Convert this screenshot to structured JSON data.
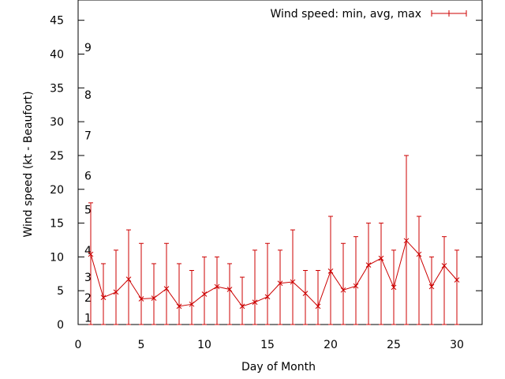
{
  "chart_data": {
    "type": "line",
    "title": "",
    "xlabel": "Day of Month",
    "ylabel": "Wind speed (kt - Beaufort)",
    "xlim": [
      0,
      32
    ],
    "ylim": [
      0,
      48
    ],
    "x_ticks": [
      0,
      5,
      10,
      15,
      20,
      25,
      30
    ],
    "y_ticks": [
      0,
      5,
      10,
      15,
      20,
      25,
      30,
      35,
      40,
      45
    ],
    "beaufort_labels": [
      {
        "label": "1",
        "value": 1
      },
      {
        "label": "2",
        "value": 4
      },
      {
        "label": "3",
        "value": 7
      },
      {
        "label": "4",
        "value": 11
      },
      {
        "label": "5",
        "value": 17
      },
      {
        "label": "6",
        "value": 22
      },
      {
        "label": "7",
        "value": 28
      },
      {
        "label": "8",
        "value": 34
      },
      {
        "label": "9",
        "value": 41
      }
    ],
    "grid": false,
    "legend_position": "top-right",
    "series": [
      {
        "name": "Wind speed: min, avg, max",
        "color": "#cc0000",
        "x": [
          1,
          2,
          3,
          4,
          5,
          6,
          7,
          8,
          9,
          10,
          11,
          12,
          13,
          14,
          15,
          16,
          17,
          18,
          19,
          20,
          21,
          22,
          23,
          24,
          25,
          26,
          27,
          28,
          29,
          30
        ],
        "min": [
          0,
          0,
          0,
          0,
          0,
          0,
          0,
          0,
          0,
          0,
          0,
          0,
          0,
          0,
          0,
          0,
          0,
          0,
          0,
          0,
          0,
          0,
          0,
          0,
          0,
          0,
          0,
          0,
          0,
          0
        ],
        "avg": [
          10.4,
          4.0,
          4.8,
          6.7,
          3.8,
          3.9,
          5.3,
          2.7,
          3.0,
          4.5,
          5.6,
          5.2,
          2.7,
          3.3,
          4.1,
          6.1,
          6.3,
          4.6,
          2.7,
          7.9,
          5.1,
          5.7,
          8.8,
          9.8,
          5.5,
          12.4,
          10.4,
          5.6,
          8.7,
          6.6
        ],
        "max": [
          18,
          9,
          11,
          14,
          12,
          9,
          12,
          9,
          8,
          10,
          10,
          9,
          7,
          11,
          12,
          11,
          14,
          8,
          8,
          16,
          12,
          13,
          15,
          15,
          11,
          25,
          16,
          10,
          13,
          11
        ]
      }
    ]
  }
}
